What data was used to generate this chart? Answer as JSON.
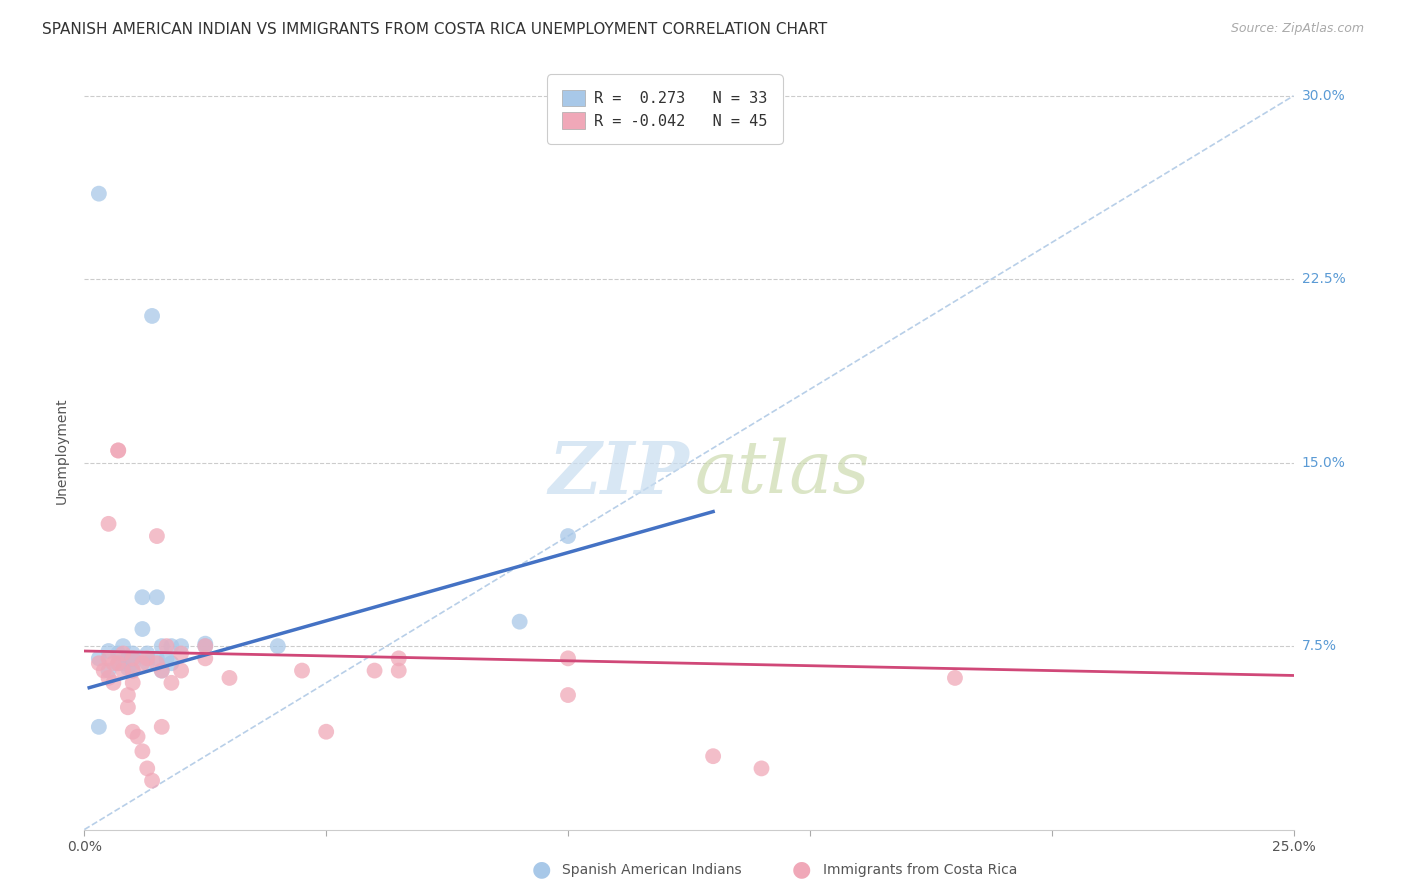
{
  "title": "SPANISH AMERICAN INDIAN VS IMMIGRANTS FROM COSTA RICA UNEMPLOYMENT CORRELATION CHART",
  "source": "Source: ZipAtlas.com",
  "ylabel": "Unemployment",
  "xlim": [
    0.0,
    0.25
  ],
  "ylim": [
    0.0,
    0.31
  ],
  "yticks": [
    0.075,
    0.15,
    0.225,
    0.3
  ],
  "ytick_labels": [
    "7.5%",
    "15.0%",
    "22.5%",
    "30.0%"
  ],
  "xticks": [
    0.0,
    0.05,
    0.1,
    0.15,
    0.2,
    0.25
  ],
  "xtick_labels": [
    "0.0%",
    "",
    "",
    "",
    "",
    "25.0%"
  ],
  "color_blue": "#a8c8e8",
  "color_pink": "#f0a8b8",
  "line_blue": "#4472c4",
  "line_pink": "#d04878",
  "line_dashed": "#b8cfe8",
  "blue_scatter_x": [
    0.003,
    0.003,
    0.005,
    0.005,
    0.007,
    0.007,
    0.008,
    0.008,
    0.009,
    0.009,
    0.01,
    0.01,
    0.01,
    0.01,
    0.012,
    0.012,
    0.013,
    0.013,
    0.014,
    0.015,
    0.015,
    0.016,
    0.016,
    0.017,
    0.018,
    0.018,
    0.02,
    0.025,
    0.025,
    0.04,
    0.09,
    0.1,
    0.003
  ],
  "blue_scatter_y": [
    0.26,
    0.07,
    0.073,
    0.065,
    0.068,
    0.072,
    0.075,
    0.068,
    0.066,
    0.07,
    0.068,
    0.072,
    0.065,
    0.07,
    0.095,
    0.082,
    0.068,
    0.072,
    0.21,
    0.095,
    0.07,
    0.075,
    0.065,
    0.07,
    0.075,
    0.068,
    0.075,
    0.075,
    0.076,
    0.075,
    0.085,
    0.12,
    0.042
  ],
  "pink_scatter_x": [
    0.003,
    0.004,
    0.005,
    0.005,
    0.006,
    0.006,
    0.007,
    0.007,
    0.007,
    0.008,
    0.008,
    0.009,
    0.009,
    0.01,
    0.01,
    0.01,
    0.011,
    0.012,
    0.012,
    0.013,
    0.013,
    0.014,
    0.015,
    0.015,
    0.016,
    0.016,
    0.017,
    0.018,
    0.02,
    0.02,
    0.025,
    0.025,
    0.03,
    0.045,
    0.05,
    0.06,
    0.065,
    0.065,
    0.1,
    0.1,
    0.13,
    0.14,
    0.18,
    0.005,
    0.01
  ],
  "pink_scatter_y": [
    0.068,
    0.065,
    0.07,
    0.062,
    0.06,
    0.068,
    0.155,
    0.155,
    0.068,
    0.065,
    0.072,
    0.05,
    0.055,
    0.065,
    0.06,
    0.07,
    0.038,
    0.032,
    0.068,
    0.025,
    0.07,
    0.02,
    0.12,
    0.068,
    0.042,
    0.065,
    0.075,
    0.06,
    0.072,
    0.065,
    0.07,
    0.075,
    0.062,
    0.065,
    0.04,
    0.065,
    0.065,
    0.07,
    0.055,
    0.07,
    0.03,
    0.025,
    0.062,
    0.125,
    0.04
  ],
  "blue_line_x": [
    0.001,
    0.13
  ],
  "blue_line_y": [
    0.058,
    0.13
  ],
  "pink_line_x": [
    0.0,
    0.25
  ],
  "pink_line_y": [
    0.073,
    0.063
  ],
  "dashed_line_x": [
    0.0,
    0.25
  ],
  "dashed_line_y": [
    0.0,
    0.3
  ],
  "title_fontsize": 11,
  "source_fontsize": 9,
  "axis_label_fontsize": 10,
  "tick_fontsize": 10,
  "legend_fontsize": 11,
  "watermark_fontsize_zip": 52,
  "watermark_fontsize_atlas": 52,
  "legend_r1_r": " 0.273",
  "legend_r1_n": "33",
  "legend_r2_r": "-0.042",
  "legend_r2_n": "45"
}
